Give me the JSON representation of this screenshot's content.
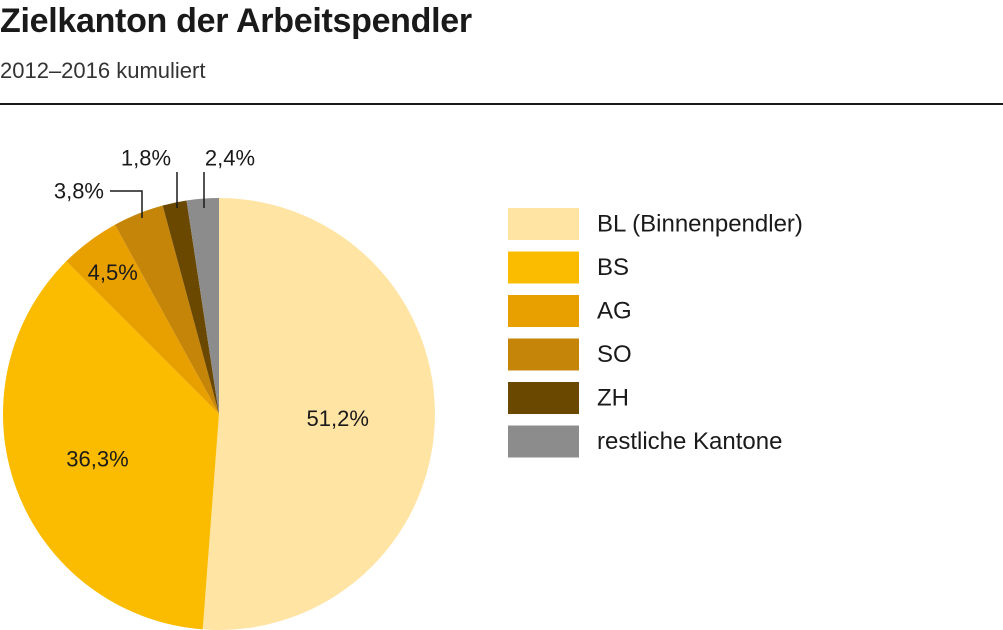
{
  "header": {
    "title": "Zielkanton der Arbeitspendler",
    "subtitle": "2012–2016 kumuliert"
  },
  "chart_data": {
    "type": "pie",
    "title": "Zielkanton der Arbeitspendler",
    "subtitle": "2012–2016 kumuliert",
    "legend_position": "right",
    "slices": [
      {
        "name": "BL (Binnenpendler)",
        "value": 51.2,
        "label": "51,2%",
        "color": "#FFE4A3"
      },
      {
        "name": "BS",
        "value": 36.3,
        "label": "36,3%",
        "color": "#FBBC00"
      },
      {
        "name": "AG",
        "value": 4.5,
        "label": "4,5%",
        "color": "#E8A000"
      },
      {
        "name": "SO",
        "value": 3.8,
        "label": "3,8%",
        "color": "#C58508"
      },
      {
        "name": "ZH",
        "value": 1.8,
        "label": "1,8%",
        "color": "#6B4800"
      },
      {
        "name": "restliche Kantone",
        "value": 2.4,
        "label": "2,4%",
        "color": "#8C8C8C"
      }
    ]
  }
}
